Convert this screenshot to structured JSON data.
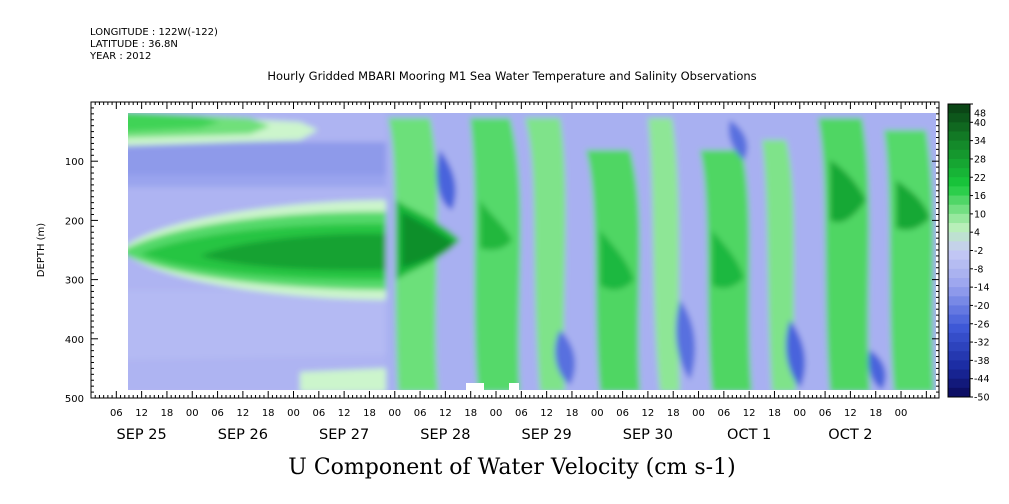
{
  "header": {
    "longitude": "LONGITUDE : 122W(-122)",
    "latitude": "LATITUDE : 36.8N",
    "year": "YEAR : 2012"
  },
  "chart_data": {
    "type": "heatmap",
    "title": "Hourly Gridded MBARI Mooring M1 Sea Water Temperature and Salinity Observations",
    "xlabel": "U Component of Water Velocity (cm s-1)",
    "ylabel": "DEPTH (m)",
    "y_range": [
      0,
      500
    ],
    "y_inverted": true,
    "y_ticks": [
      100,
      200,
      300,
      400,
      500
    ],
    "x_range_hours": [
      0,
      201
    ],
    "x_tick_labels": [
      "06",
      "12",
      "18",
      "00",
      "06",
      "12",
      "18",
      "00",
      "06",
      "12",
      "18",
      "00",
      "06",
      "12",
      "18",
      "00",
      "06",
      "12",
      "18",
      "00",
      "06",
      "12",
      "18",
      "00",
      "06",
      "12",
      "18",
      "00",
      "06",
      "12",
      "18",
      "00"
    ],
    "date_labels": [
      "SEP 25",
      "SEP 26",
      "SEP 27",
      "SEP 28",
      "SEP 29",
      "SEP 30",
      "OCT  1",
      "OCT  2"
    ],
    "colorbar": {
      "levels": [
        48,
        40,
        34,
        28,
        22,
        16,
        10,
        4,
        -2,
        -8,
        -14,
        -20,
        -26,
        -32,
        -38,
        -44,
        -50
      ],
      "colors": {
        "strong_positive": "#0a3d14",
        "moderate_positive": "#19c93c",
        "weak_positive": "#b8f0b8",
        "weak_negative": "#aeb4f2",
        "moderate_negative": "#3f5ad8",
        "strong_negative": "#0a0a5a"
      }
    },
    "grid": false
  }
}
